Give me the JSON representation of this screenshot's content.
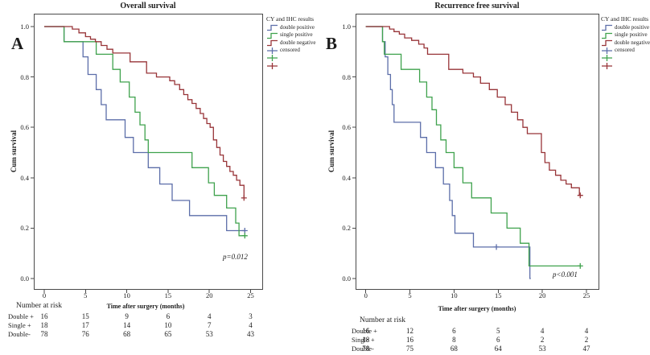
{
  "figure": {
    "background": "#ffffff",
    "accent_colors": {
      "double_positive": "#5c6ea9",
      "single_positive": "#3fa24d",
      "double_negative": "#983438"
    }
  },
  "chart_data": [
    {
      "type": "line",
      "subtype": "kaplan-meier-step",
      "panel_label": "A",
      "title": "Overall survival",
      "xlabel": "Time after surgery (months)",
      "ylabel": "Cum survival",
      "p_value": "p=0.012",
      "xticks": [
        "0",
        "5",
        "10",
        "15",
        "20",
        "25"
      ],
      "yticks": [
        "0.0",
        "0.2",
        "0.4",
        "0.6",
        "0.8",
        "1.0"
      ],
      "xlim": [
        -1.3,
        26.5
      ],
      "ylim": [
        -0.05,
        1.05
      ],
      "grid": false,
      "legend_position": "right-outside",
      "legend": {
        "title": "CY and IHC results",
        "items": [
          {
            "label": "double positive",
            "color": "#5c6ea9",
            "glyph": "step"
          },
          {
            "label": "single positive",
            "color": "#3fa24d",
            "glyph": "step"
          },
          {
            "label": "double negative",
            "color": "#983438",
            "glyph": "step"
          },
          {
            "label": "censored",
            "color": "#5c6ea9",
            "glyph": "plus"
          },
          {
            "label": "",
            "color": "#3fa24d",
            "glyph": "plus"
          },
          {
            "label": "",
            "color": "#983438",
            "glyph": "plus"
          }
        ]
      },
      "series": [
        {
          "name": "double positive",
          "color": "#5c6ea9",
          "steps": [
            [
              0,
              1.0
            ],
            [
              2.4,
              0.94
            ],
            [
              4.7,
              0.88
            ],
            [
              5.3,
              0.81
            ],
            [
              6.3,
              0.75
            ],
            [
              6.9,
              0.69
            ],
            [
              7.5,
              0.63
            ],
            [
              9.8,
              0.56
            ],
            [
              10.8,
              0.5
            ],
            [
              12.6,
              0.44
            ],
            [
              14.0,
              0.375
            ],
            [
              15.5,
              0.31
            ],
            [
              17.6,
              0.25
            ],
            [
              22.1,
              0.19
            ],
            [
              24.3,
              0.19
            ]
          ],
          "censors": [
            [
              24.3,
              0.19
            ]
          ]
        },
        {
          "name": "single positive",
          "color": "#3fa24d",
          "steps": [
            [
              0,
              1.0
            ],
            [
              2.4,
              0.94
            ],
            [
              6.3,
              0.89
            ],
            [
              8.3,
              0.83
            ],
            [
              9.2,
              0.78
            ],
            [
              10.3,
              0.72
            ],
            [
              11.0,
              0.66
            ],
            [
              11.6,
              0.61
            ],
            [
              12.2,
              0.55
            ],
            [
              12.6,
              0.5
            ],
            [
              17.9,
              0.44
            ],
            [
              19.9,
              0.38
            ],
            [
              20.6,
              0.33
            ],
            [
              22.1,
              0.28
            ],
            [
              23.2,
              0.22
            ],
            [
              23.6,
              0.17
            ],
            [
              24.3,
              0.17
            ]
          ],
          "censors": [
            [
              24.3,
              0.17
            ]
          ]
        },
        {
          "name": "double negative",
          "color": "#983438",
          "steps": [
            [
              0,
              1.0
            ],
            [
              3.4,
              0.99
            ],
            [
              4.2,
              0.975
            ],
            [
              5.0,
              0.96
            ],
            [
              5.6,
              0.95
            ],
            [
              6.2,
              0.94
            ],
            [
              6.9,
              0.925
            ],
            [
              7.6,
              0.91
            ],
            [
              8.3,
              0.895
            ],
            [
              10.4,
              0.86
            ],
            [
              12.4,
              0.815
            ],
            [
              13.6,
              0.8
            ],
            [
              15.2,
              0.785
            ],
            [
              15.8,
              0.77
            ],
            [
              16.4,
              0.75
            ],
            [
              16.9,
              0.73
            ],
            [
              17.4,
              0.71
            ],
            [
              17.9,
              0.695
            ],
            [
              18.4,
              0.675
            ],
            [
              18.9,
              0.655
            ],
            [
              19.3,
              0.635
            ],
            [
              19.7,
              0.615
            ],
            [
              20.1,
              0.6
            ],
            [
              20.5,
              0.55
            ],
            [
              20.9,
              0.52
            ],
            [
              21.3,
              0.49
            ],
            [
              21.7,
              0.465
            ],
            [
              22.1,
              0.445
            ],
            [
              22.5,
              0.425
            ],
            [
              22.9,
              0.41
            ],
            [
              23.3,
              0.39
            ],
            [
              23.7,
              0.37
            ],
            [
              24.2,
              0.32
            ]
          ],
          "censors": [
            [
              24.2,
              0.32
            ]
          ]
        }
      ],
      "risk_table": {
        "heading": "Number at risk",
        "rows": [
          {
            "label": "Double +",
            "values": [
              "16",
              "15",
              "9",
              "6",
              "4",
              "3"
            ]
          },
          {
            "label": "Single +",
            "values": [
              "18",
              "17",
              "14",
              "10",
              "7",
              "4"
            ]
          },
          {
            "label": "Double-",
            "values": [
              "78",
              "76",
              "68",
              "65",
              "53",
              "43"
            ]
          }
        ]
      }
    },
    {
      "type": "line",
      "subtype": "kaplan-meier-step",
      "panel_label": "B",
      "title": "Recurrence free survival",
      "xlabel": "Time after surgery (months)",
      "ylabel": "Cum survival",
      "p_value": "p<0.001",
      "xticks": [
        "0",
        "5",
        "10",
        "15",
        "20",
        "25"
      ],
      "yticks": [
        "0.0",
        "0.2",
        "0.4",
        "0.6",
        "0.8",
        "1.0"
      ],
      "xlim": [
        -1.2,
        26.4
      ],
      "ylim": [
        -0.05,
        1.05
      ],
      "grid": false,
      "legend_position": "right-outside",
      "legend": {
        "title": "CY and IHC results",
        "items": [
          {
            "label": "double positive",
            "color": "#5c6ea9",
            "glyph": "step"
          },
          {
            "label": "single positive",
            "color": "#3fa24d",
            "glyph": "step"
          },
          {
            "label": "double negative",
            "color": "#983438",
            "glyph": "step"
          },
          {
            "label": "censored",
            "color": "#5c6ea9",
            "glyph": "plus"
          },
          {
            "label": "",
            "color": "#3fa24d",
            "glyph": "plus"
          },
          {
            "label": "",
            "color": "#983438",
            "glyph": "plus"
          }
        ]
      },
      "series": [
        {
          "name": "double positive",
          "color": "#5c6ea9",
          "steps": [
            [
              0,
              1.0
            ],
            [
              1.9,
              0.94
            ],
            [
              2.2,
              0.88
            ],
            [
              2.5,
              0.81
            ],
            [
              2.8,
              0.75
            ],
            [
              3.0,
              0.69
            ],
            [
              3.2,
              0.62
            ],
            [
              6.2,
              0.56
            ],
            [
              6.9,
              0.5
            ],
            [
              7.9,
              0.44
            ],
            [
              8.8,
              0.375
            ],
            [
              9.5,
              0.31
            ],
            [
              9.8,
              0.25
            ],
            [
              10.1,
              0.18
            ],
            [
              12.2,
              0.125
            ],
            [
              18.6,
              0.0
            ],
            [
              18.7,
              0.0
            ]
          ],
          "censors": [
            [
              14.8,
              0.125
            ]
          ]
        },
        {
          "name": "single positive",
          "color": "#3fa24d",
          "steps": [
            [
              0,
              1.0
            ],
            [
              1.9,
              0.94
            ],
            [
              2.1,
              0.89
            ],
            [
              4.0,
              0.83
            ],
            [
              6.1,
              0.78
            ],
            [
              6.9,
              0.72
            ],
            [
              7.5,
              0.67
            ],
            [
              8.0,
              0.61
            ],
            [
              8.5,
              0.55
            ],
            [
              9.1,
              0.5
            ],
            [
              10.0,
              0.44
            ],
            [
              11.0,
              0.38
            ],
            [
              12.0,
              0.32
            ],
            [
              14.2,
              0.26
            ],
            [
              16.0,
              0.2
            ],
            [
              17.5,
              0.14
            ],
            [
              18.5,
              0.05
            ],
            [
              24.3,
              0.05
            ]
          ],
          "censors": [
            [
              24.3,
              0.05
            ]
          ]
        },
        {
          "name": "double negative",
          "color": "#983438",
          "steps": [
            [
              0,
              1.0
            ],
            [
              2.7,
              0.99
            ],
            [
              3.2,
              0.98
            ],
            [
              3.8,
              0.97
            ],
            [
              4.4,
              0.955
            ],
            [
              5.2,
              0.945
            ],
            [
              6.0,
              0.93
            ],
            [
              6.6,
              0.915
            ],
            [
              7.0,
              0.89
            ],
            [
              9.4,
              0.83
            ],
            [
              11.0,
              0.815
            ],
            [
              12.2,
              0.8
            ],
            [
              13.0,
              0.775
            ],
            [
              14.0,
              0.75
            ],
            [
              14.9,
              0.72
            ],
            [
              15.8,
              0.69
            ],
            [
              16.5,
              0.66
            ],
            [
              17.2,
              0.63
            ],
            [
              17.8,
              0.6
            ],
            [
              18.3,
              0.575
            ],
            [
              19.9,
              0.5
            ],
            [
              20.3,
              0.46
            ],
            [
              20.8,
              0.43
            ],
            [
              21.5,
              0.41
            ],
            [
              22.1,
              0.39
            ],
            [
              22.7,
              0.375
            ],
            [
              23.3,
              0.36
            ],
            [
              24.2,
              0.33
            ]
          ],
          "censors": [
            [
              24.3,
              0.33
            ]
          ]
        }
      ],
      "risk_table": {
        "heading": "Number at risk",
        "rows": [
          {
            "label": "Double +",
            "values": [
              "16",
              "12",
              "6",
              "5",
              "4",
              "4"
            ]
          },
          {
            "label": "Single +",
            "values": [
              "18",
              "16",
              "8",
              "6",
              "2",
              "2"
            ]
          },
          {
            "label": "Double-",
            "values": [
              "78",
              "75",
              "68",
              "64",
              "53",
              "47"
            ]
          }
        ]
      }
    }
  ]
}
